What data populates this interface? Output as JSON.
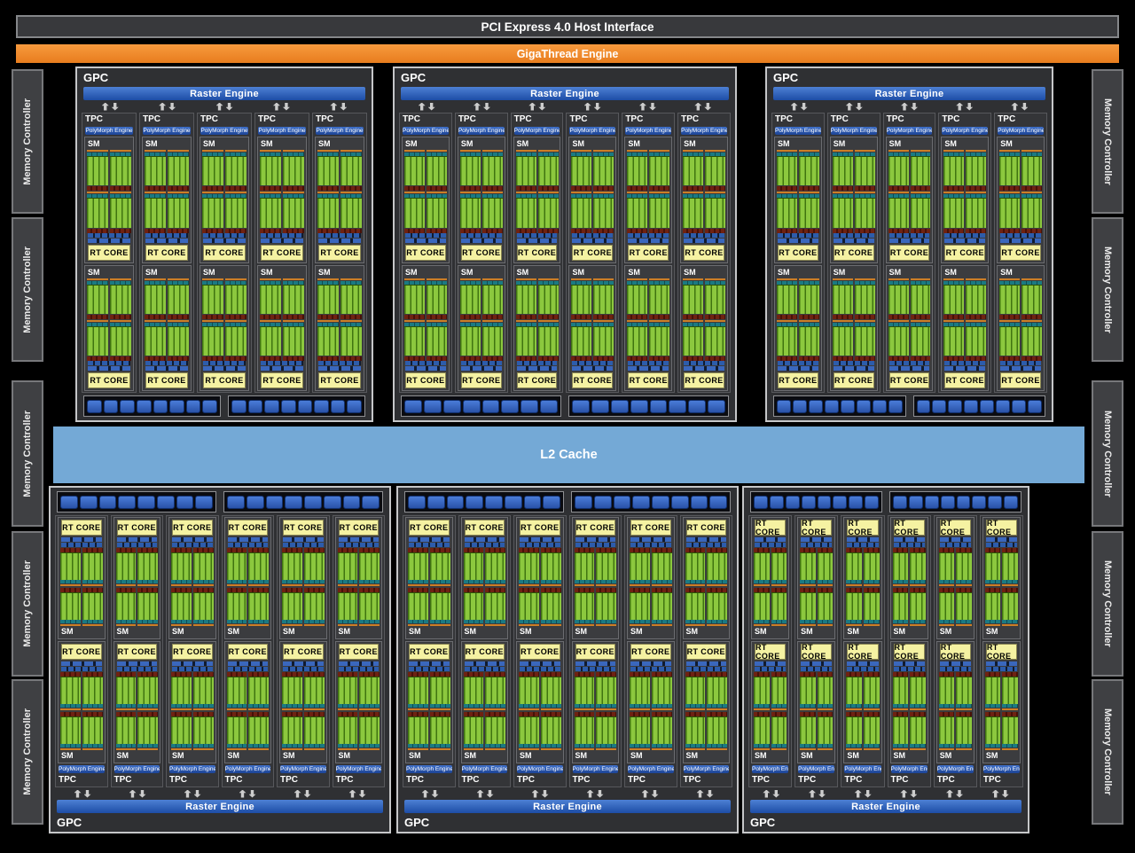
{
  "header": {
    "pci_label": "PCI Express 4.0 Host Interface",
    "gigathread_label": "GigaThread Engine"
  },
  "l2_cache": {
    "label": "L2 Cache"
  },
  "memory": {
    "label": "Memory Controller",
    "left_count": 5,
    "right_count": 5
  },
  "gpu": {
    "gpc_label": "GPC",
    "raster_label": "Raster Engine",
    "tpc_label": "TPC",
    "polymorph_label": "PolyMorph Engine",
    "sm_label": "SM",
    "rt_core_label": "RT CORE",
    "top_gpc_tpc_counts": [
      5,
      6,
      5
    ],
    "bottom_gpc_tpc_counts": [
      6,
      6,
      6
    ],
    "sms_per_tpc": 2,
    "rop_partitions_per_gpc": 2,
    "rops_per_partition": 8
  },
  "colors": {
    "background": "#000000",
    "host_bar_gray": "#38393c",
    "gigathread_orange": "#ef8a2c",
    "raster_blue": "#2457ae",
    "polymorph_blue": "#2d5cb0",
    "l2_blue": "#74a9d6",
    "rt_core_yellow": "#f5f2a2",
    "sm_green": "#8cc83e",
    "sm_teal": "#16646c",
    "sm_red": "#6e2212",
    "rop_blue": "#3a6cc4",
    "memory_gray": "#3f4043",
    "gpc_gray": "#2f3033"
  }
}
